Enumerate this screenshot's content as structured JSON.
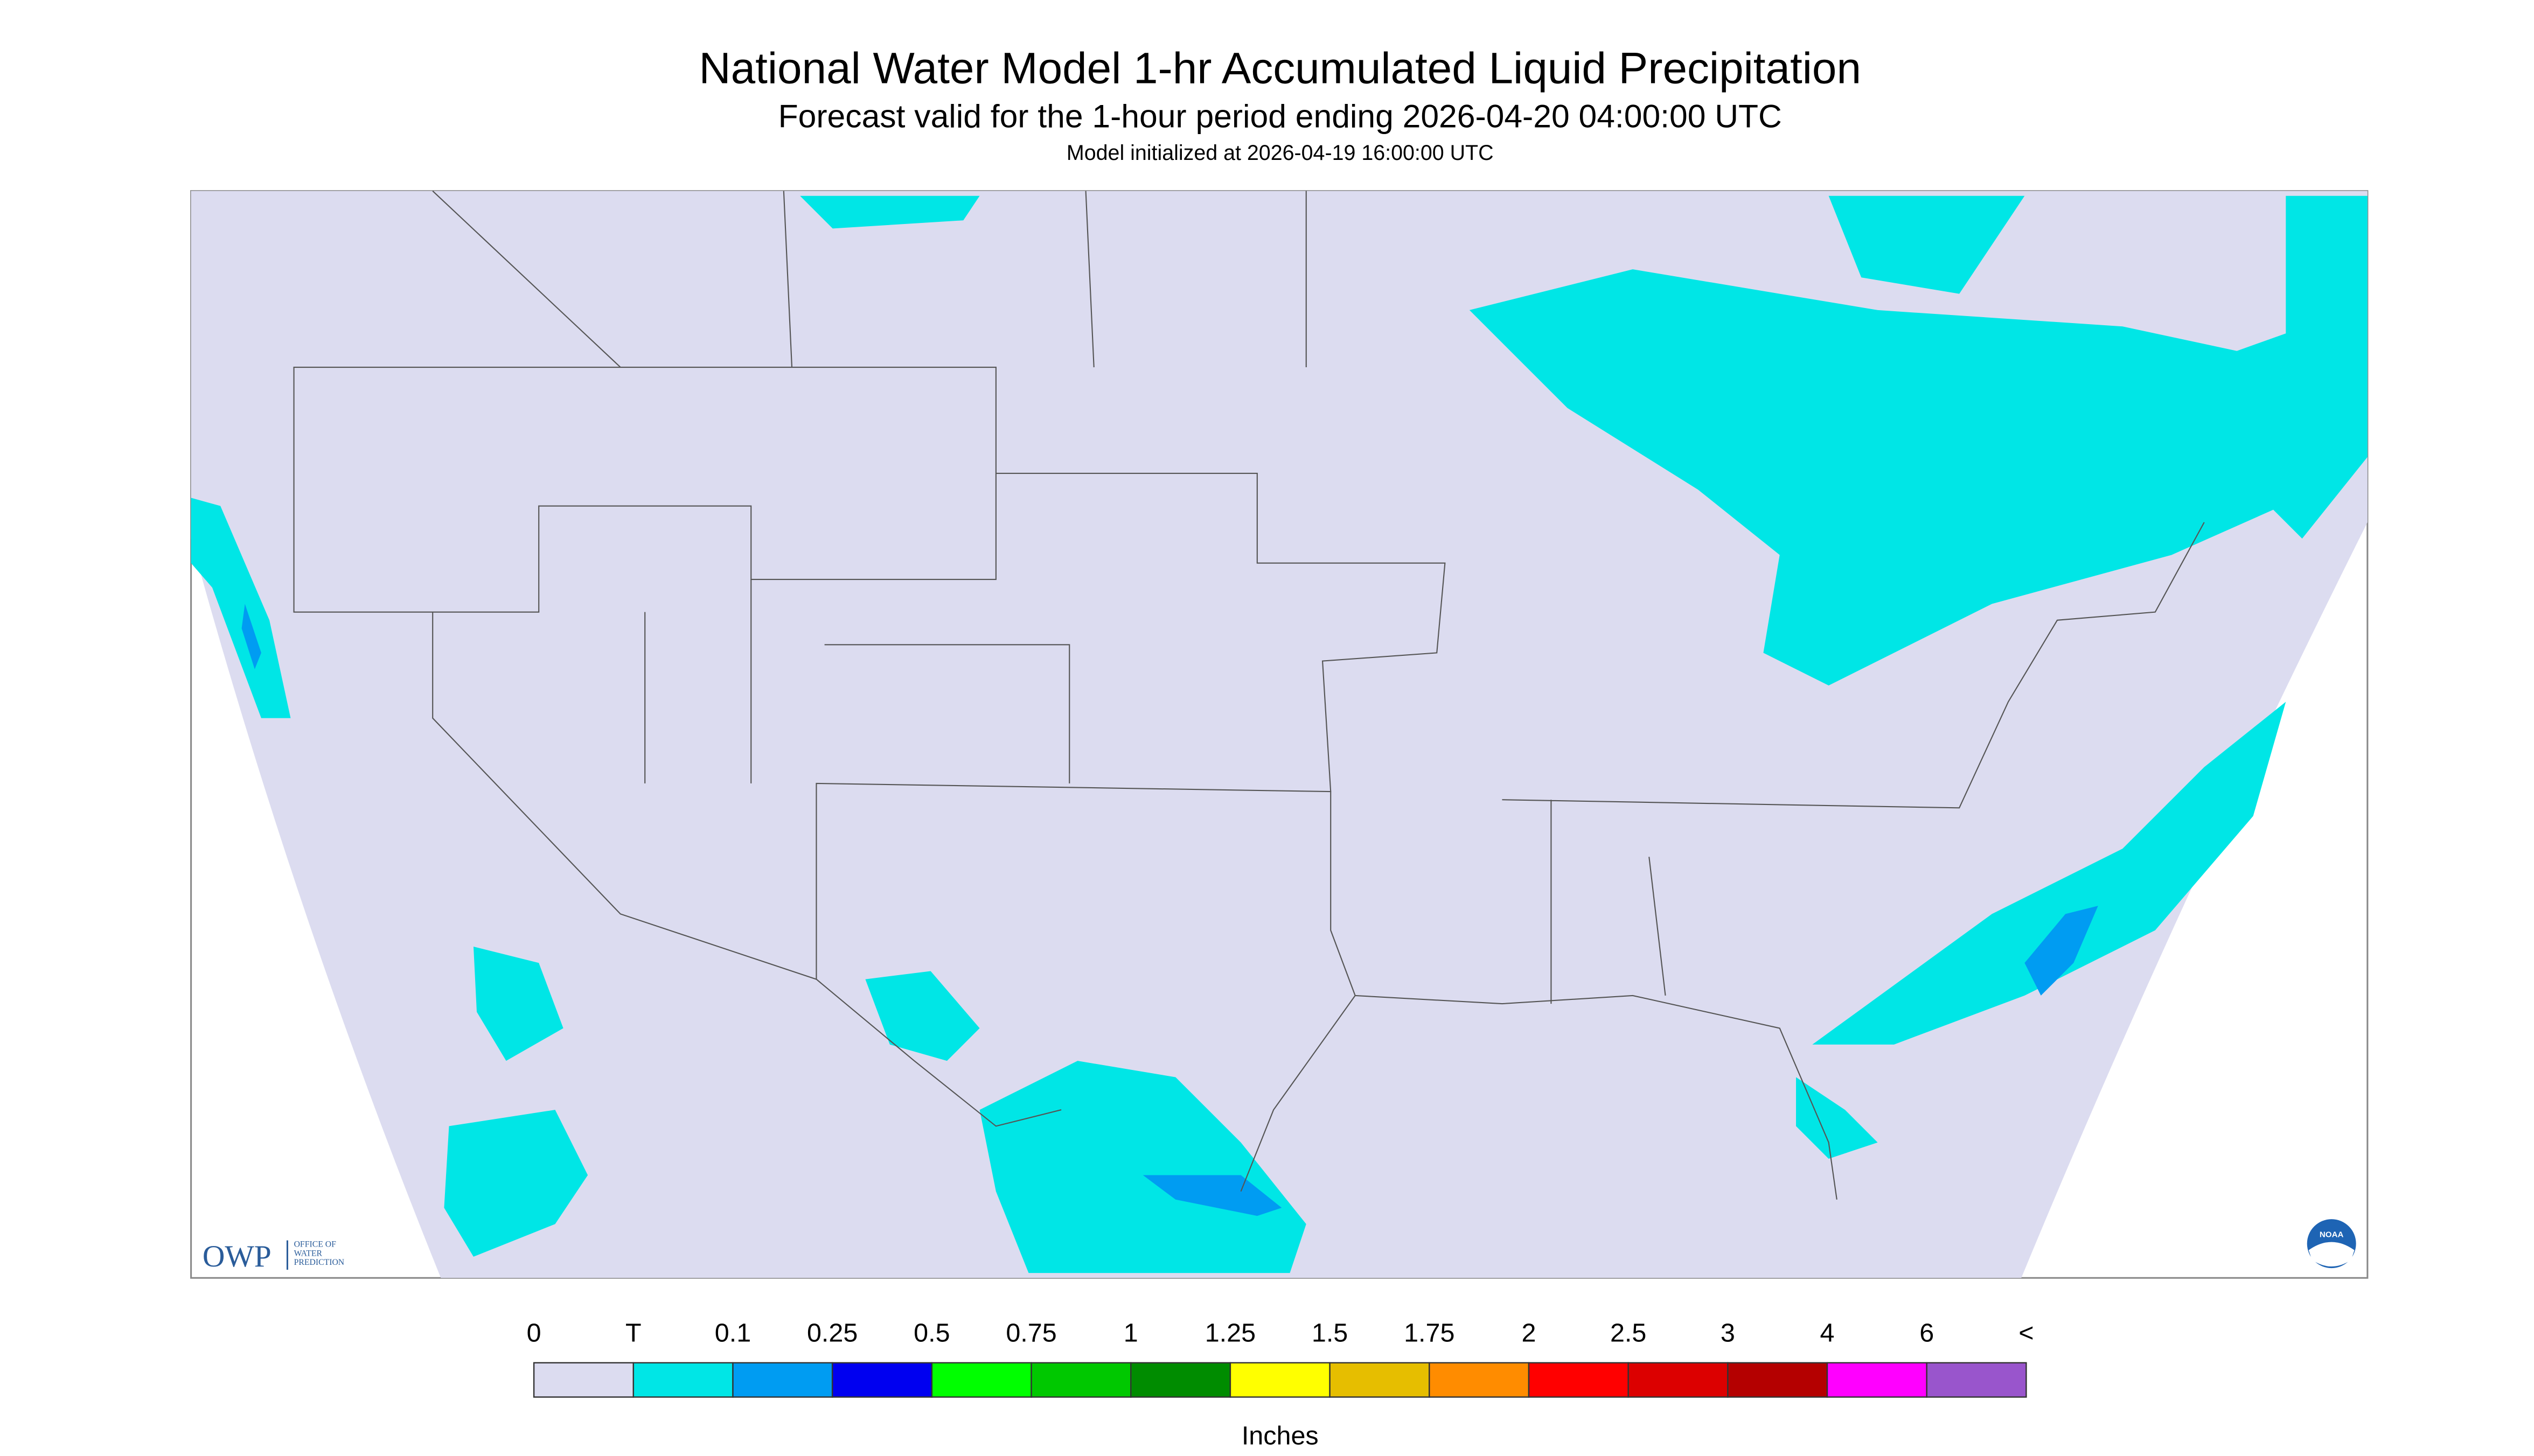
{
  "header": {
    "title": "National Water Model 1-hr Accumulated Liquid Precipitation",
    "subtitle": "Forecast valid for the 1-hour period ending 2026-04-20 04:00:00 UTC",
    "initialized": "Model initialized at 2026-04-19 16:00:00 UTC"
  },
  "legend": {
    "labels": [
      "0",
      "T",
      "0.1",
      "0.25",
      "0.5",
      "0.75",
      "1",
      "1.25",
      "1.5",
      "1.75",
      "2",
      "2.5",
      "3",
      "4",
      "6",
      "<"
    ],
    "colors": [
      "#dcdcf0",
      "#00e6e6",
      "#009cf2",
      "#0000f0",
      "#00ff00",
      "#00c800",
      "#008c00",
      "#ffff00",
      "#e6be00",
      "#ff8c00",
      "#ff0000",
      "#dc0000",
      "#b40000",
      "#ff00ff",
      "#9955cc"
    ],
    "unit": "Inches"
  },
  "logo": {
    "mark": "OWP",
    "lines": [
      "OFFICE OF",
      "WATER",
      "PREDICTION"
    ],
    "noaa": "NOAA"
  }
}
